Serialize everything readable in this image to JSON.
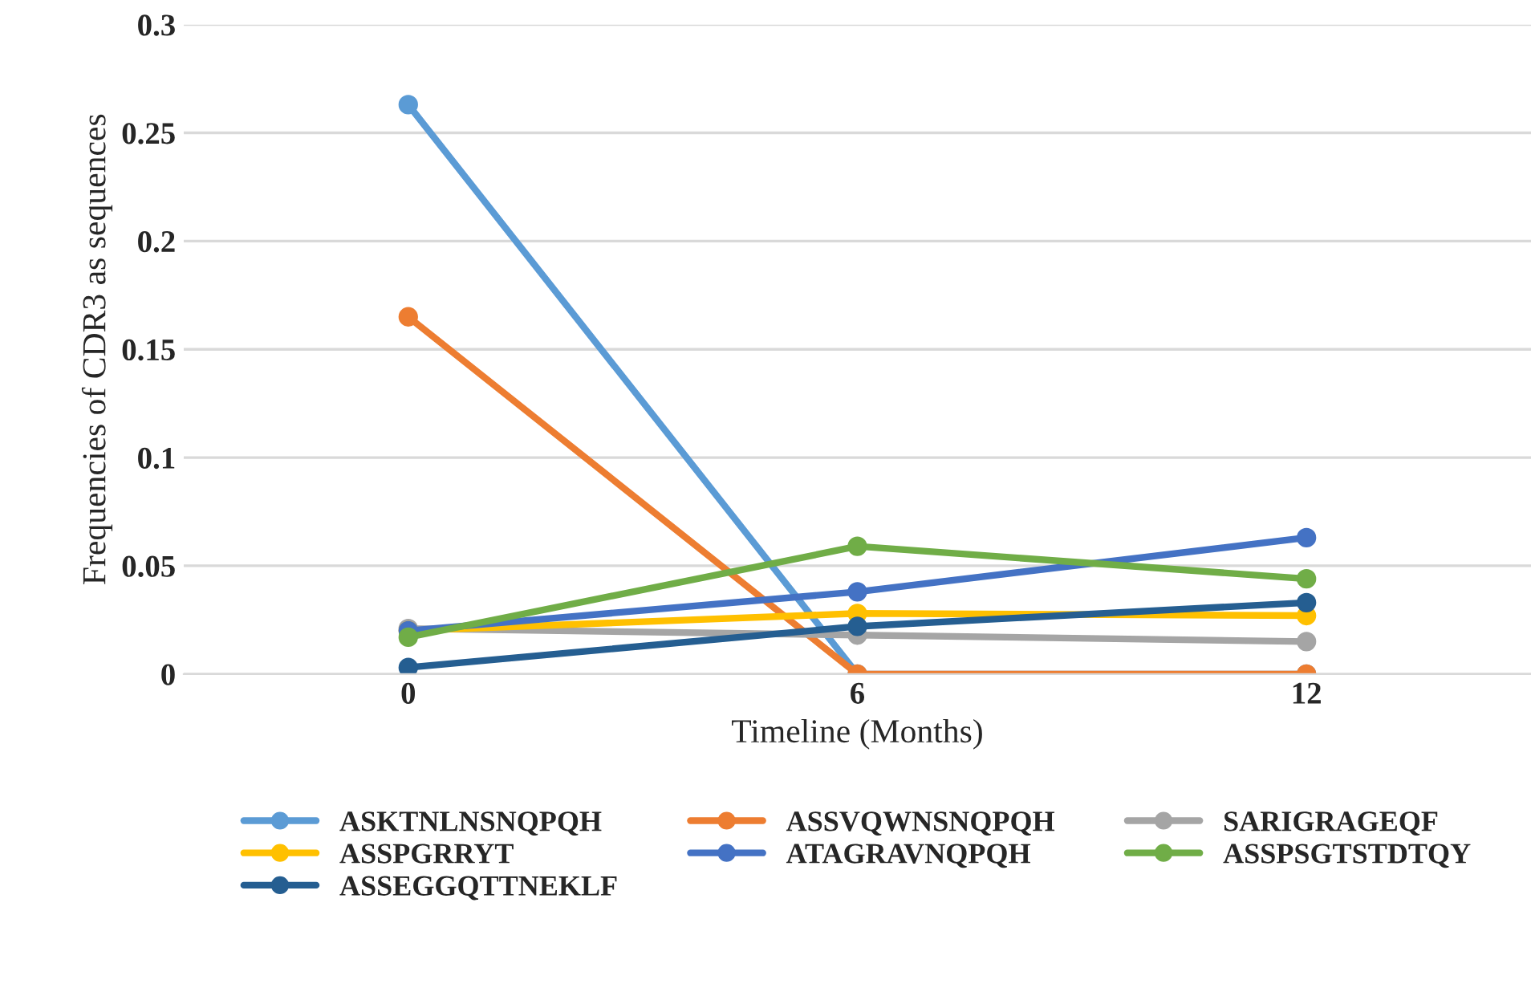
{
  "chart_data": {
    "type": "line",
    "xlabel": "Timeline (Months)",
    "ylabel": "Frequencies of CDR3 as sequences",
    "categories": [
      "0",
      "6",
      "12"
    ],
    "series": [
      {
        "name": "ASKTNLNSNQPQH",
        "color": "#5b9bd5",
        "values": [
          0.263,
          0,
          0
        ]
      },
      {
        "name": "ASSVQWNSNQPQH",
        "color": "#ed7d31",
        "values": [
          0.165,
          0,
          0
        ]
      },
      {
        "name": "SARIGRAGEQF",
        "color": "#a5a5a5",
        "values": [
          0.021,
          0.018,
          0.015
        ]
      },
      {
        "name": "ASSPGRRYT",
        "color": "#ffc000",
        "values": [
          0.02,
          0.028,
          0.027
        ]
      },
      {
        "name": "ATAGRAVNQPQH",
        "color": "#4472c4",
        "values": [
          0.02,
          0.038,
          0.063
        ]
      },
      {
        "name": "ASSPSGTSTDTQY",
        "color": "#70ad47",
        "values": [
          0.017,
          0.059,
          0.044
        ]
      },
      {
        "name": "ASSEGGQTTNEKLF",
        "color": "#255e91",
        "values": [
          0.003,
          0.022,
          0.033
        ]
      }
    ],
    "ylim": [
      0,
      0.3
    ],
    "yticks": [
      0,
      0.05,
      0.1,
      0.15,
      0.2,
      0.25,
      0.3
    ],
    "grid": "y",
    "legend": "bottom",
    "marker": "circle",
    "line_style": "solid"
  }
}
